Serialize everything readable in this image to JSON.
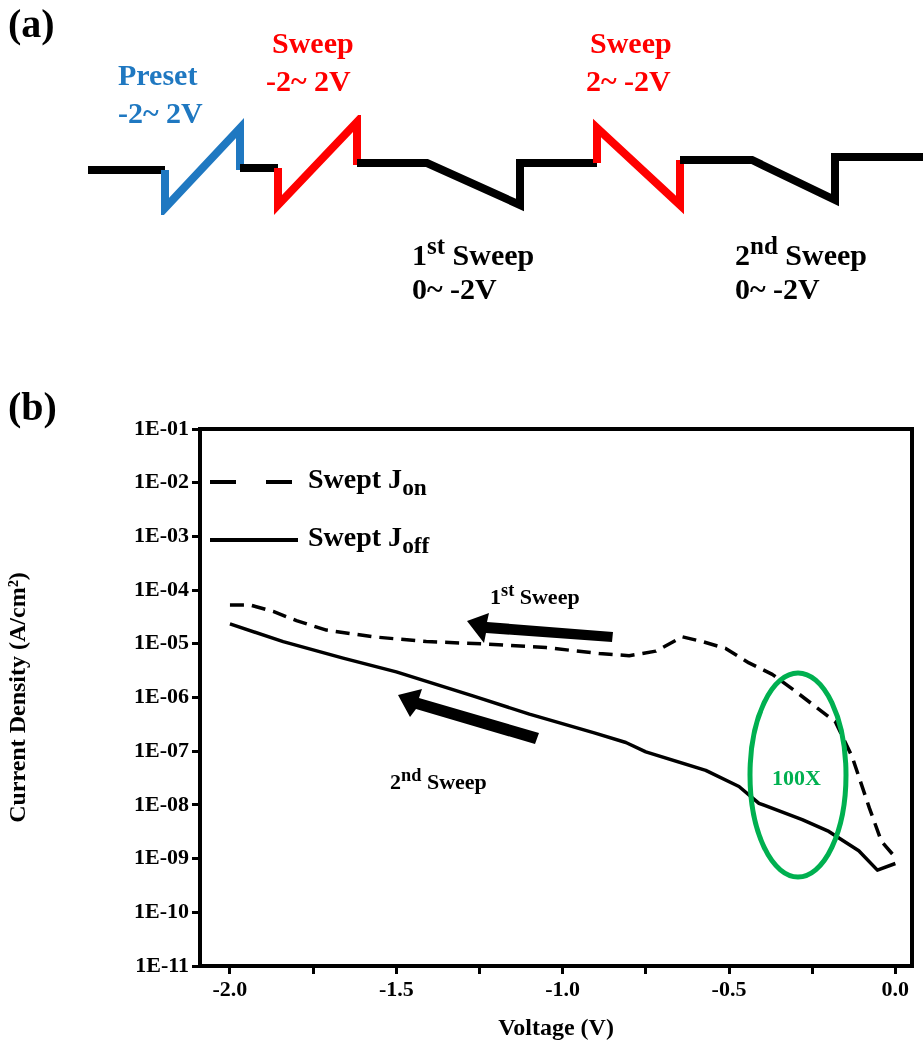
{
  "chart_data": [
    {
      "type": "other",
      "title": "(a)",
      "annotations": [
        "Preset",
        "-2~ 2V",
        "Sweep",
        "-2~ 2V",
        "Sweep",
        "2~ -2V",
        "1$^{st}$ Sweep",
        "0~ -2V",
        "2$^{nd}$ Sweep",
        "0~ -2V"
      ]
    },
    {
      "type": "line",
      "title": "(b)",
      "xlabel": "Voltage (V)",
      "ylabel": "Current Density (A/cm²)",
      "log": "y",
      "grid": false,
      "legend": "top left",
      "marker": "none",
      "xlim": [
        -2.09,
        0.05
      ],
      "ylim": [
        1e-11,
        0.1
      ],
      "xticks": [
        {
          "value": -2,
          "label": "-2.0"
        },
        {
          "value": -1.75,
          "label": null
        },
        {
          "value": -1.5,
          "label": "-1.5"
        },
        {
          "value": -1.25,
          "label": null
        },
        {
          "value": -1,
          "label": "-1.0"
        },
        {
          "value": -0.75,
          "label": null
        },
        {
          "value": -0.5,
          "label": "-0.5"
        },
        {
          "value": -0.25,
          "label": null
        },
        {
          "value": 0,
          "label": "0.0"
        }
      ],
      "yticks": [
        {
          "value": 1e-11,
          "label": "1E-11"
        },
        {
          "value": 1e-10,
          "label": "1E-10"
        },
        {
          "value": 1e-09,
          "label": "1E-09"
        },
        {
          "value": 1e-08,
          "label": "1E-08"
        },
        {
          "value": 1e-07,
          "label": "1E-07"
        },
        {
          "value": 1e-06,
          "label": "1E-06"
        },
        {
          "value": 1e-05,
          "label": "1E-05"
        },
        {
          "value": 0.0001,
          "label": "1E-04"
        },
        {
          "value": 0.001,
          "label": "1E-03"
        },
        {
          "value": 0.01,
          "label": "1E-02"
        },
        {
          "value": 0.1,
          "label": "1E-01"
        }
      ],
      "annotations": [
        "1$^{st}$ Sweep",
        "2$^{nd}$ Sweep",
        "100X"
      ],
      "series": [
        {
          "name": "Swept J$_{on}$",
          "color": "#000000",
          "line_style": "dashed",
          "x": [
            -2.0,
            -1.94,
            -1.87,
            -1.8,
            -1.71,
            -1.57,
            -1.41,
            -1.245,
            -1.05,
            -0.89,
            -0.8,
            -0.72,
            -0.64,
            -0.58,
            -0.51,
            -0.44,
            -0.37,
            -0.3,
            -0.18,
            -0.13,
            -0.078,
            -0.042,
            0.0
          ],
          "values": [
            5.3e-05,
            5.3e-05,
            4e-05,
            2.7e-05,
            1.8e-05,
            1.35e-05,
            1.1e-05,
            1e-05,
            8.5e-06,
            6.6e-06,
            6e-06,
            7.3e-06,
            1.35e-05,
            1.1e-05,
            8.2e-06,
            4.4e-06,
            2.7e-06,
            1.3e-06,
            3.5e-07,
            7.9e-08,
            8.7e-09,
            2.1e-09,
            1.05e-09
          ]
        },
        {
          "name": "Swept J$_{off}$",
          "color": "#000000",
          "line_style": "solid",
          "x": [
            -2.0,
            -1.84,
            -1.66,
            -1.5,
            -1.27,
            -1.1,
            -0.905,
            -0.81,
            -0.75,
            -0.57,
            -0.47,
            -0.41,
            -0.28,
            -0.2,
            -0.11,
            -0.054,
            0.0
          ],
          "values": [
            2.35e-05,
            1.1e-05,
            5.4e-06,
            3e-06,
            1.07e-06,
            4.9e-07,
            2.2e-07,
            1.45e-07,
            9.7e-08,
            4.4e-08,
            2.2e-08,
            1.07e-08,
            5.3e-09,
            3.2e-09,
            1.4e-09,
            6.1e-10,
            8.1e-10
          ]
        }
      ]
    }
  ]
}
